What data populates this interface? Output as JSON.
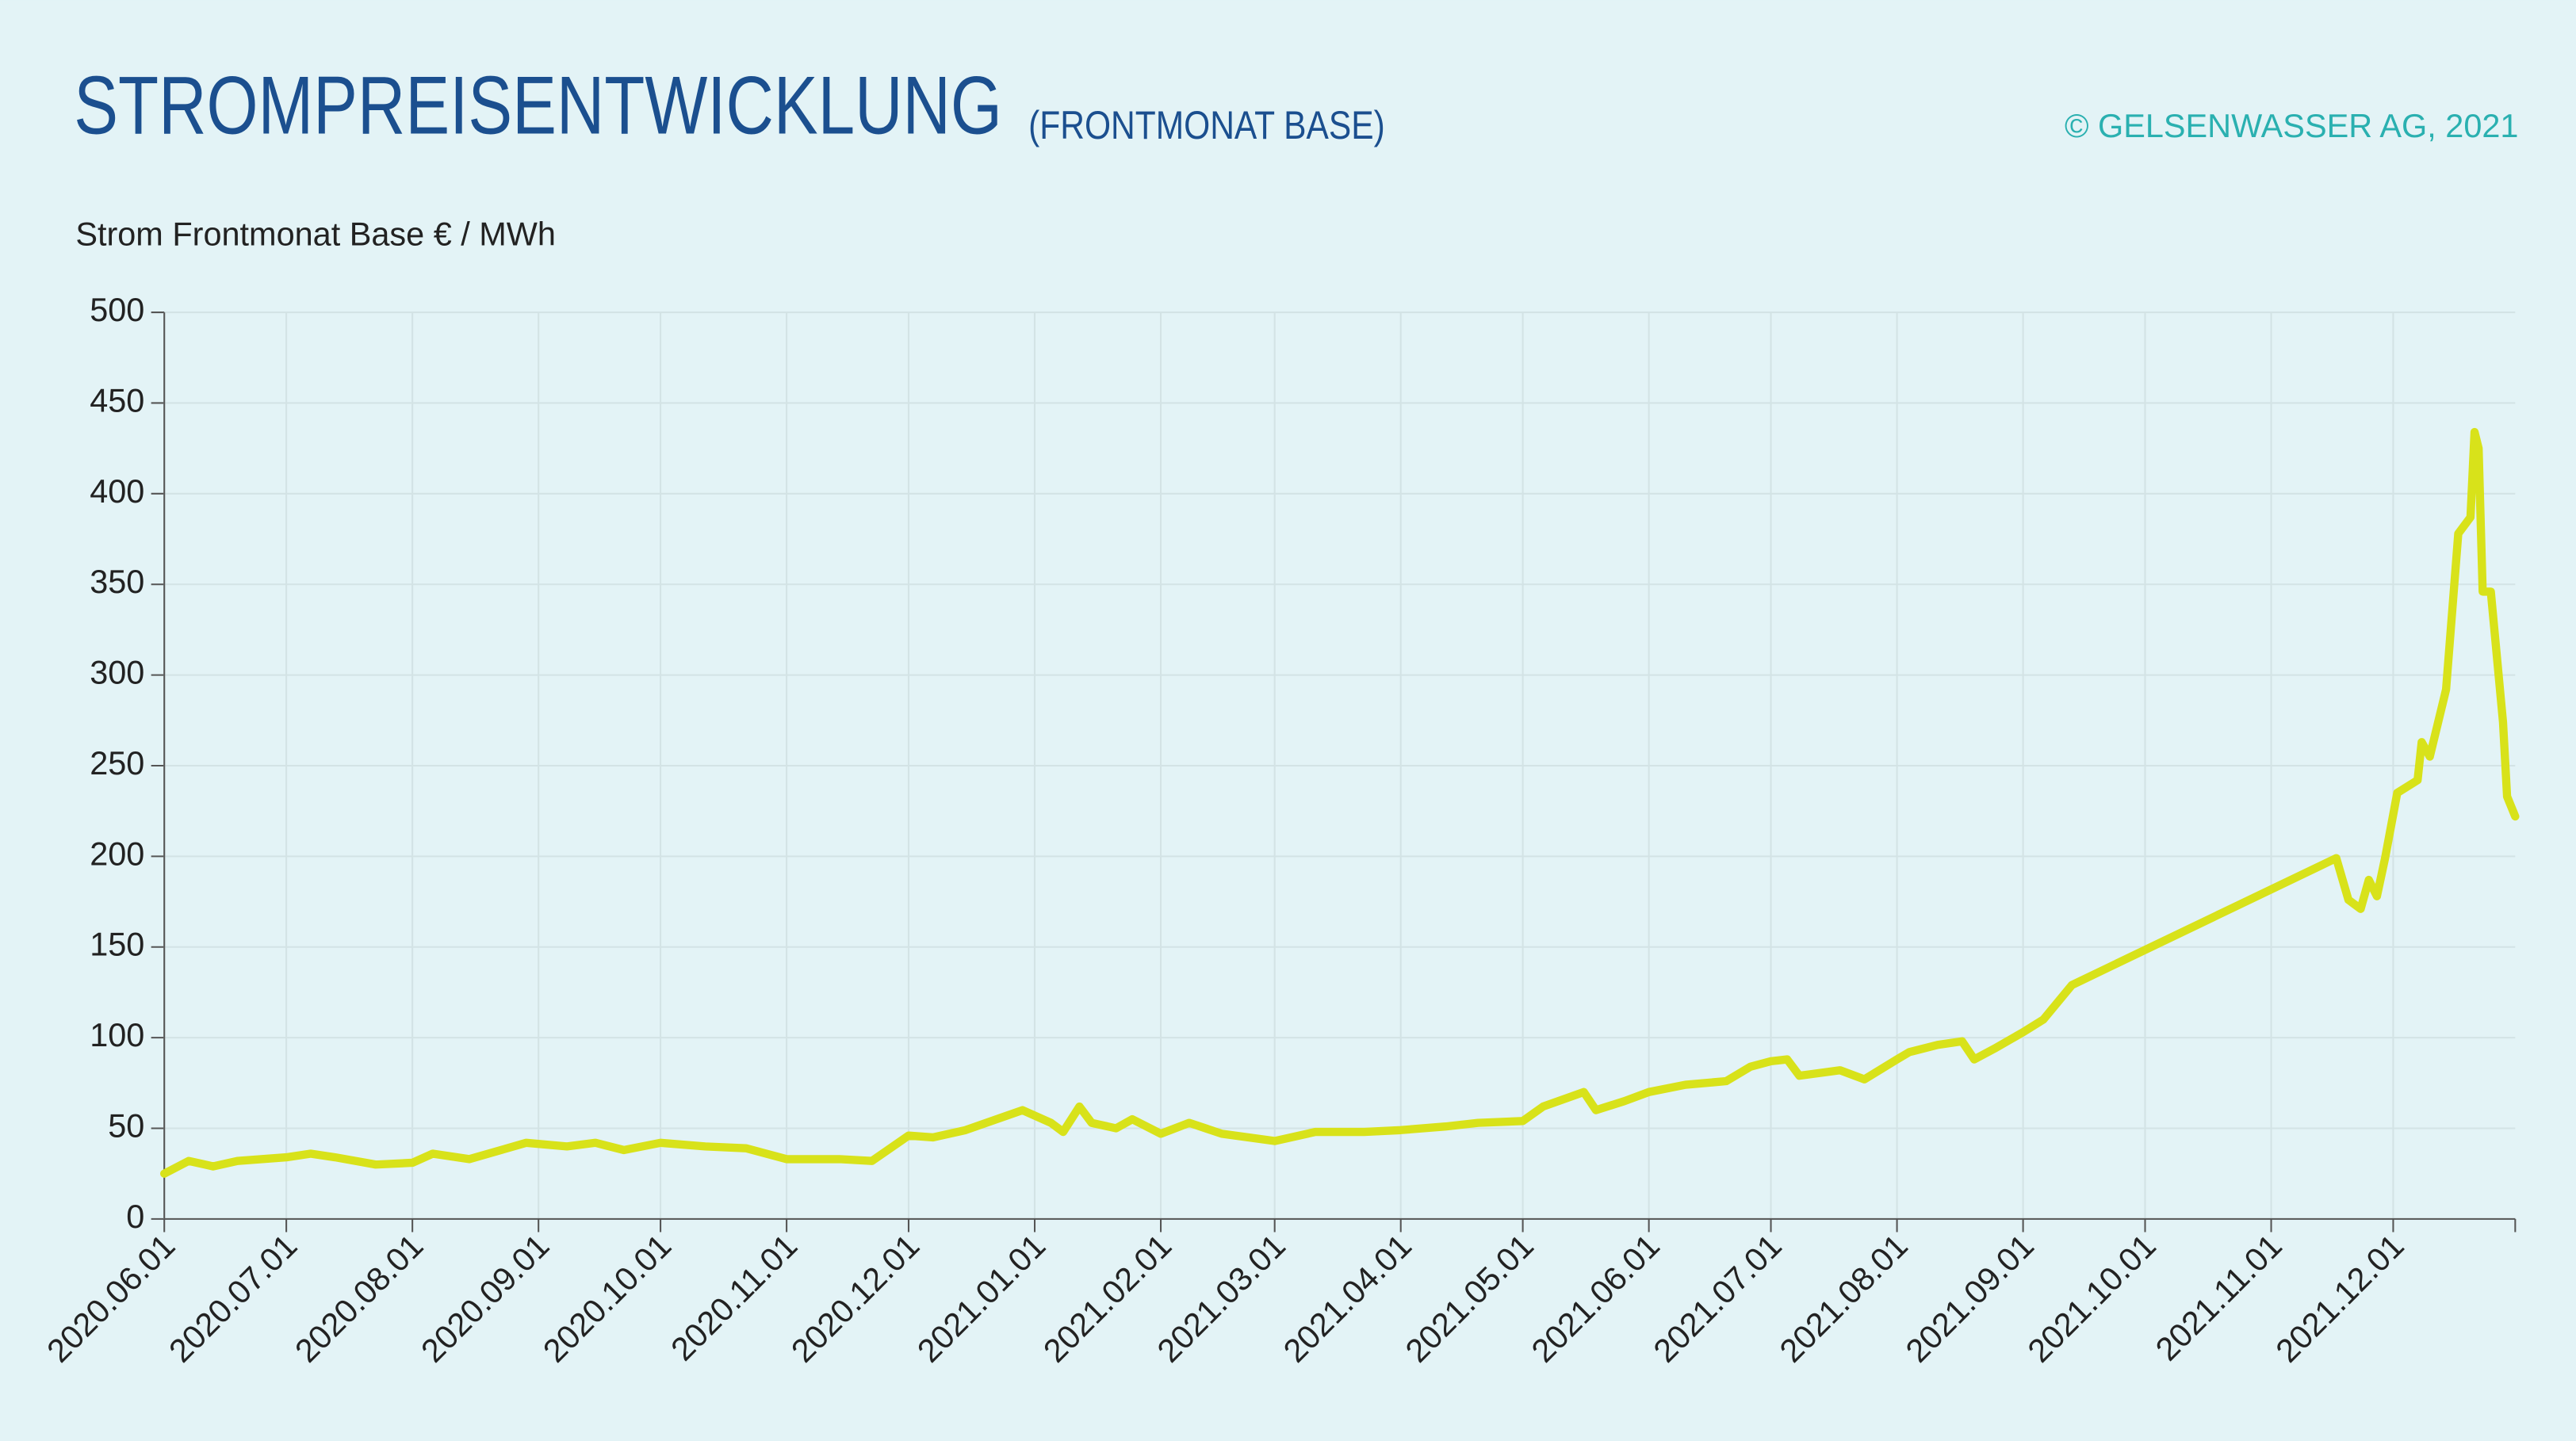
{
  "chart_data": {
    "type": "line",
    "title": "STROMPREISENTWICKLUNG",
    "subtitle": "(FRONTMONAT BASE)",
    "credit": "© GELSENWASSER AG, 2021",
    "y_label": "Strom Frontmonat Base € / MWh",
    "x": [
      "2020.06.01",
      "2020.06.07",
      "2020.06.13",
      "2020.06.19",
      "2020.07.01",
      "2020.07.07",
      "2020.07.13",
      "2020.07.23",
      "2020.08.01",
      "2020.08.06",
      "2020.08.15",
      "2020.08.29",
      "2020.09.08",
      "2020.09.15",
      "2020.09.22",
      "2020.10.01",
      "2020.10.12",
      "2020.10.22",
      "2020.11.01",
      "2020.11.14",
      "2020.11.22",
      "2020.12.01",
      "2020.12.07",
      "2020.12.15",
      "2020.12.29",
      "2021.01.05",
      "2021.01.08",
      "2021.01.12",
      "2021.01.15",
      "2021.01.21",
      "2021.01.25",
      "2021.02.01",
      "2021.02.08",
      "2021.02.16",
      "2021.03.01",
      "2021.03.11",
      "2021.03.23",
      "2021.04.01",
      "2021.04.12",
      "2021.04.20",
      "2021.05.01",
      "2021.05.06",
      "2021.05.16",
      "2021.05.19",
      "2021.05.26",
      "2021.06.01",
      "2021.06.10",
      "2021.06.20",
      "2021.06.26",
      "2021.07.01",
      "2021.07.05",
      "2021.07.08",
      "2021.07.18",
      "2021.07.24",
      "2021.08.01",
      "2021.08.04",
      "2021.08.11",
      "2021.08.17",
      "2021.08.20",
      "2021.08.25",
      "2021.09.01",
      "2021.09.06",
      "2021.09.13",
      "2021.11.17",
      "2021.11.20",
      "2021.11.23",
      "2021.11.25",
      "2021.11.27",
      "2021.11.29",
      "2021.12.02",
      "2021.12.07",
      "2021.12.08",
      "2021.12.10",
      "2021.12.14",
      "2021.12.17",
      "2021.12.20",
      "2021.12.21",
      "2021.12.22",
      "2021.12.23",
      "2021.12.25",
      "2021.12.28",
      "2021.12.29",
      "2021.12.31"
    ],
    "series": [
      {
        "name": "Strom Frontmonat Base",
        "color": "#d8e21a",
        "values": [
          25,
          32,
          29,
          32,
          34,
          36,
          34,
          30,
          31,
          36,
          33,
          42,
          40,
          42,
          38,
          42,
          40,
          39,
          33,
          33,
          32,
          46,
          45,
          49,
          60,
          53,
          48,
          62,
          53,
          50,
          55,
          47,
          53,
          47,
          43,
          48,
          48,
          49,
          51,
          53,
          54,
          62,
          70,
          60,
          65,
          70,
          74,
          76,
          84,
          87,
          88,
          79,
          82,
          77,
          88,
          92,
          96,
          98,
          88,
          94,
          103,
          110,
          129,
          199,
          176,
          171,
          187,
          178,
          199,
          235,
          242,
          263,
          255,
          292,
          378,
          387,
          434,
          425,
          346,
          346,
          274,
          233,
          222
        ]
      }
    ],
    "xlim": [
      "2020.06.01",
      "2021.12.31"
    ],
    "xticks": [
      "2020.06.01",
      "2020.07.01",
      "2020.08.01",
      "2020.09.01",
      "2020.10.01",
      "2020.11.01",
      "2020.12.01",
      "2021.01.01",
      "2021.02.01",
      "2021.03.01",
      "2021.04.01",
      "2021.05.01",
      "2021.06.01",
      "2021.07.01",
      "2021.08.01",
      "2021.09.01",
      "2021.10.01",
      "2021.11.01",
      "2021.12.01"
    ],
    "ylim": [
      0,
      500
    ],
    "yticks": [
      0,
      50,
      100,
      150,
      200,
      250,
      300,
      350,
      400,
      450,
      500
    ],
    "grid": true
  }
}
